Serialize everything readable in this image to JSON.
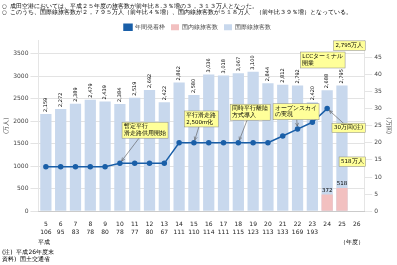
{
  "chart_data": {
    "type": "bar",
    "notes": [
      "○  成田空港においては、平成２５年度の旅客数が前年比８.３％増の３，３１３万人となった。",
      "○  このうち、国際線旅客数が２，７９５万人（前年比４％増）、国内線旅客数が５１８万人　（前年比３９％増）となっている。"
    ],
    "footer_notes": [
      "(注)  平成26年度末",
      "資料)  国土交通省"
    ],
    "x_prefix": "平成",
    "xlabel": "（年度）",
    "ylabel": "(万人)",
    "y2label": "(万回)",
    "categories": [
      "5",
      "6",
      "7",
      "8",
      "9",
      "10",
      "11",
      "12",
      "13",
      "14",
      "15",
      "16",
      "17",
      "18",
      "19",
      "20",
      "21",
      "22",
      "23",
      "24",
      "25",
      "26"
    ],
    "departures": [
      106,
      95,
      83,
      78,
      80,
      78,
      77,
      80,
      67,
      111,
      110,
      114,
      111,
      115,
      123,
      113,
      133,
      169,
      193,
      null,
      null,
      null
    ],
    "series": [
      {
        "name": "国際線旅客数",
        "type": "bar",
        "color": "#c8d8ed",
        "data_labels": true,
        "values": [
          2159,
          2272,
          2389,
          2479,
          2439,
          2384,
          2519,
          2692,
          2422,
          2862,
          2580,
          3036,
          3018,
          3067,
          3100,
          2844,
          2812,
          2792,
          2420,
          2688,
          2795,
          null
        ],
        "value_labels": [
          "2,159",
          "2,272",
          "2,389",
          "2,479",
          "2,439",
          "2,384",
          "2,519",
          "2,692",
          "2,422",
          "2,862",
          "2,580",
          "3,036",
          "3,018",
          "3,067",
          "3,100",
          "2,844",
          "2,812",
          "2,792",
          "2,420",
          "2,688",
          "2,795",
          null
        ]
      },
      {
        "name": "国内線旅客数",
        "type": "bar",
        "color": "#f2c0c0",
        "data_labels": true,
        "values": [
          null,
          null,
          null,
          null,
          null,
          null,
          null,
          null,
          null,
          null,
          null,
          null,
          null,
          null,
          null,
          null,
          null,
          null,
          null,
          372,
          518,
          null
        ]
      },
      {
        "name": "年間発着枠",
        "type": "line",
        "axis": "y2",
        "color": "#1a5fa8",
        "marker": "circle",
        "line_style": "solid",
        "values": [
          13,
          13,
          13,
          13,
          13,
          14,
          14,
          14,
          14,
          20,
          20,
          20,
          20,
          20,
          20,
          20,
          22,
          24,
          26,
          30,
          null,
          null
        ]
      }
    ],
    "ylim": [
      0,
      3800
    ],
    "yticks": [
      0,
      500,
      1000,
      1500,
      2000,
      2500,
      3000,
      3500
    ],
    "y2lim": [
      0,
      50
    ],
    "y2ticks": [
      0,
      5,
      10,
      15,
      20,
      25,
      30,
      35,
      40,
      45
    ],
    "grid": true,
    "legend": "top",
    "annotations": [
      {
        "text": "暫定平行\n滑走路供用開始",
        "x": "10"
      },
      {
        "text": "平行滑走路\n2,500m化",
        "x": "15"
      },
      {
        "text": "同時平行離陸\n方式導入",
        "x": "18"
      },
      {
        "text": "オープンスカイ\nの実現",
        "x": "22"
      },
      {
        "text": "LCCターミナル\n開業",
        "x": "25"
      },
      {
        "text": "30万回(注)",
        "x": "24"
      },
      {
        "text": "518万人",
        "x": "25"
      },
      {
        "text": "2,795万人",
        "x": "25"
      }
    ]
  }
}
